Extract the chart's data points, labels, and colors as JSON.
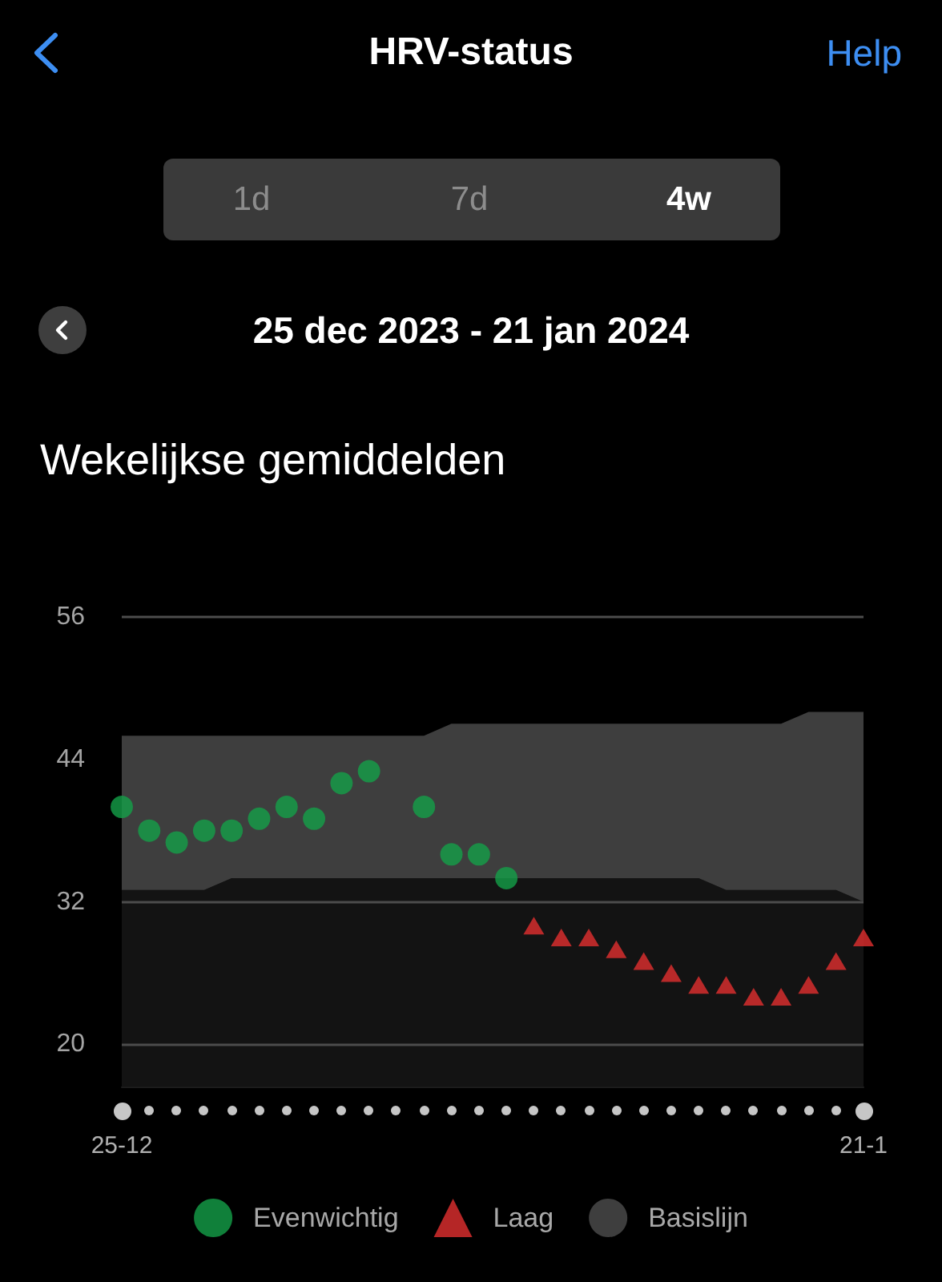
{
  "chart_data": {
    "type": "scatter",
    "title": "HRV-status",
    "subtitle": "25 dec 2023 - 21 jan 2024",
    "annotations": [
      "Help",
      "1d",
      "7d",
      "4w",
      "Wekelijkse gemiddelden"
    ],
    "categories": [
      "25-12",
      null,
      null,
      null,
      null,
      null,
      null,
      null,
      null,
      null,
      null,
      null,
      null,
      null,
      null,
      null,
      null,
      null,
      null,
      null,
      null,
      null,
      null,
      null,
      null,
      null,
      null,
      "21-1"
    ],
    "series": [
      {
        "name": "Evenwichtig",
        "marker": "circle",
        "color": "#14a048",
        "values": [
          40,
          38,
          37,
          38,
          38,
          39,
          40,
          39,
          42,
          43,
          null,
          40,
          36,
          36,
          34,
          null,
          null,
          null,
          null,
          null,
          null,
          null,
          null,
          null,
          null,
          null,
          null,
          null
        ]
      },
      {
        "name": "Laag",
        "marker": "triangle",
        "color": "#e2302f",
        "values": [
          null,
          null,
          null,
          null,
          null,
          null,
          null,
          null,
          null,
          null,
          null,
          null,
          null,
          null,
          null,
          30,
          29,
          29,
          28,
          27,
          26,
          25,
          25,
          24,
          24,
          25,
          27,
          29
        ]
      },
      {
        "name": "Basislijn",
        "type": "area",
        "color": "#3e3e3e",
        "values": [
          null,
          null,
          null,
          null,
          null,
          null,
          null,
          null,
          null,
          null,
          null,
          null,
          null,
          null,
          null,
          null,
          null,
          null,
          null,
          null,
          null,
          null,
          null,
          null,
          null,
          null,
          null,
          null
        ],
        "lower": [
          33,
          33,
          33,
          33,
          34,
          34,
          34,
          34,
          34,
          34,
          34,
          34,
          34,
          34,
          34,
          34,
          34,
          34,
          34,
          34,
          34,
          34,
          33,
          33,
          33,
          33,
          33,
          32
        ],
        "upper": [
          46,
          46,
          46,
          46,
          46,
          46,
          46,
          46,
          46,
          46,
          46,
          46,
          47,
          47,
          47,
          47,
          47,
          47,
          47,
          47,
          47,
          47,
          47,
          47,
          47,
          48,
          48,
          48
        ]
      },
      {
        "type": "area",
        "color": "#131313",
        "values": [
          33,
          33,
          33,
          33,
          34,
          34,
          34,
          34,
          34,
          34,
          34,
          34,
          34,
          34,
          34,
          34,
          34,
          34,
          34,
          34,
          34,
          34,
          33,
          33,
          33,
          33,
          33,
          32
        ]
      }
    ],
    "ylim": [
      16.4,
      56
    ],
    "yticks": [
      20,
      32,
      44,
      56
    ],
    "grid": "y",
    "legend": "bottom"
  }
}
